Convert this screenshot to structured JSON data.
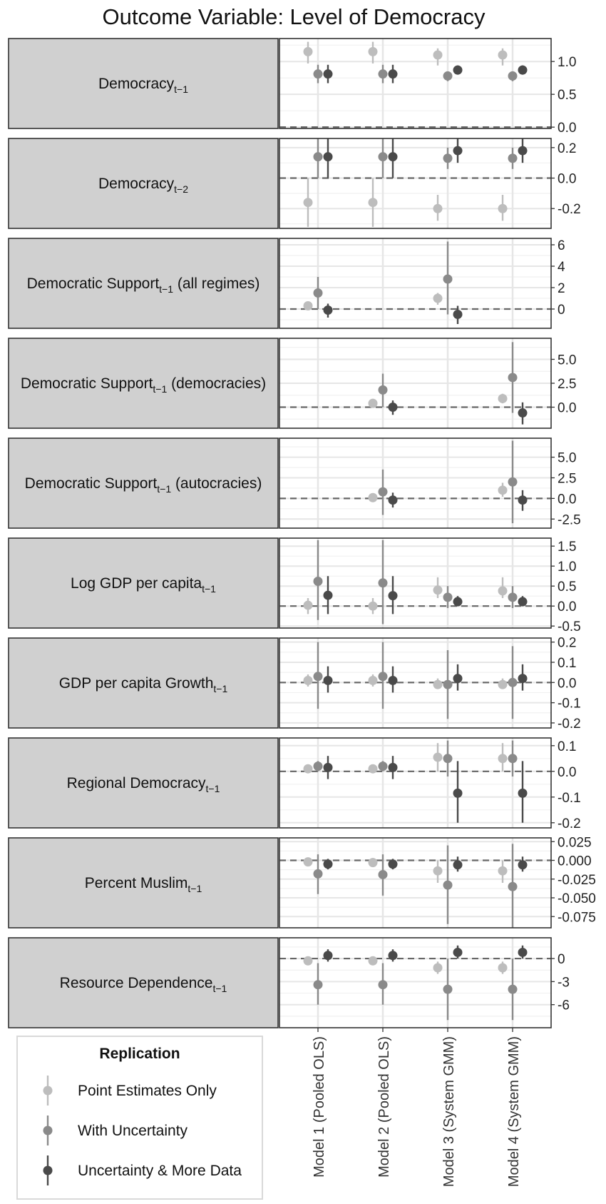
{
  "title": "Outcome Variable: Level of Democracy",
  "legend": {
    "title": "Replication",
    "position": "bottom-left",
    "entries": [
      {
        "label": "Point Estimates Only",
        "color": "#bdbdbd"
      },
      {
        "label": "With Uncertainty",
        "color": "#8a8a8a"
      },
      {
        "label": "Uncertainty & More Data",
        "color": "#4a4a4a"
      }
    ]
  },
  "colors": {
    "point_estimates_only": "#bdbdbd",
    "with_uncertainty": "#8a8a8a",
    "uncertainty_more_data": "#4a4a4a",
    "strip_fill": "#d0d0d0",
    "grid": "#e6e6e6",
    "zero_line": "#666666"
  },
  "chart_data": {
    "type": "scatter",
    "style": "coefficient-plot",
    "grid": true,
    "categories": [
      "Model 1 (Pooled OLS)",
      "Model 2 (Pooled OLS)",
      "Model 3 (System GMM)",
      "Model 4 (System GMM)"
    ],
    "series_names": [
      "Point Estimates Only",
      "With Uncertainty",
      "Uncertainty & More Data"
    ],
    "panels": [
      {
        "label_main": "Democracy",
        "label_sub": "t−1",
        "label_rest": "",
        "ylim": [
          -0.02,
          1.35
        ],
        "ticks": [
          {
            "v": 1.0,
            "t": "1.0"
          },
          {
            "v": 0.5,
            "t": "0.5"
          },
          {
            "v": 0.0,
            "t": "0.0"
          }
        ],
        "minor": [
          0.25,
          0.75,
          1.25
        ],
        "points": [
          [
            {
              "y": 1.15,
              "lo": 0.97,
              "hi": 1.3
            },
            {
              "y": 0.81,
              "lo": 0.67,
              "hi": 0.95
            },
            {
              "y": 0.81,
              "lo": 0.67,
              "hi": 0.95
            }
          ],
          [
            {
              "y": 1.15,
              "lo": 0.97,
              "hi": 1.3
            },
            {
              "y": 0.81,
              "lo": 0.67,
              "hi": 0.95
            },
            {
              "y": 0.81,
              "lo": 0.67,
              "hi": 0.95
            }
          ],
          [
            {
              "y": 1.1,
              "lo": 0.94,
              "hi": 1.2
            },
            {
              "y": 0.78,
              "lo": 0.7,
              "hi": 0.85
            },
            {
              "y": 0.87,
              "lo": 0.8,
              "hi": 0.94
            }
          ],
          [
            {
              "y": 1.1,
              "lo": 0.94,
              "hi": 1.2
            },
            {
              "y": 0.78,
              "lo": 0.7,
              "hi": 0.85
            },
            {
              "y": 0.87,
              "lo": 0.8,
              "hi": 0.94
            }
          ]
        ]
      },
      {
        "label_main": "Democracy",
        "label_sub": "t−2",
        "label_rest": "",
        "ylim": [
          -0.33,
          0.26
        ],
        "ticks": [
          {
            "v": 0.2,
            "t": "0.2"
          },
          {
            "v": 0.0,
            "t": "0.0"
          },
          {
            "v": -0.2,
            "t": "-0.2"
          }
        ],
        "minor": [
          0.1,
          -0.1,
          -0.3
        ],
        "points": [
          [
            {
              "y": -0.16,
              "lo": -0.32,
              "hi": 0.0
            },
            {
              "y": 0.14,
              "lo": 0.0,
              "hi": 0.27
            },
            {
              "y": 0.14,
              "lo": 0.0,
              "hi": 0.27
            }
          ],
          [
            {
              "y": -0.16,
              "lo": -0.32,
              "hi": 0.0
            },
            {
              "y": 0.14,
              "lo": 0.0,
              "hi": 0.27
            },
            {
              "y": 0.14,
              "lo": 0.0,
              "hi": 0.27
            }
          ],
          [
            {
              "y": -0.2,
              "lo": -0.28,
              "hi": -0.11
            },
            {
              "y": 0.13,
              "lo": 0.06,
              "hi": 0.2
            },
            {
              "y": 0.18,
              "lo": 0.1,
              "hi": 0.26
            }
          ],
          [
            {
              "y": -0.2,
              "lo": -0.28,
              "hi": -0.11
            },
            {
              "y": 0.13,
              "lo": 0.06,
              "hi": 0.2
            },
            {
              "y": 0.18,
              "lo": 0.1,
              "hi": 0.26
            }
          ]
        ]
      },
      {
        "label_main": "Democratic Support",
        "label_sub": "t−1",
        "label_rest": " (all regimes)",
        "ylim": [
          -1.8,
          6.6
        ],
        "ticks": [
          {
            "v": 6,
            "t": "6"
          },
          {
            "v": 4,
            "t": "4"
          },
          {
            "v": 2,
            "t": "2"
          },
          {
            "v": 0,
            "t": "0"
          }
        ],
        "minor": [
          5,
          3,
          1,
          -1
        ],
        "points": [
          [
            {
              "y": 0.3,
              "lo": 0.1,
              "hi": 0.5
            },
            {
              "y": 1.5,
              "lo": 0.0,
              "hi": 3.0
            },
            {
              "y": -0.1,
              "lo": -0.8,
              "hi": 0.5
            }
          ],
          null,
          [
            {
              "y": 1.0,
              "lo": 0.4,
              "hi": 1.5
            },
            {
              "y": 2.8,
              "lo": -0.5,
              "hi": 6.3
            },
            {
              "y": -0.5,
              "lo": -1.4,
              "hi": 0.3
            }
          ],
          null
        ]
      },
      {
        "label_main": "Democratic Support",
        "label_sub": "t−1",
        "label_rest": " (democracies)",
        "ylim": [
          -2.2,
          7.2
        ],
        "ticks": [
          {
            "v": 5,
            "t": "5.0"
          },
          {
            "v": 2.5,
            "t": "2.5"
          },
          {
            "v": 0,
            "t": "0.0"
          }
        ],
        "minor": [
          6.25,
          3.75,
          1.25,
          -1.25
        ],
        "points": [
          null,
          [
            {
              "y": 0.4,
              "lo": 0.1,
              "hi": 0.7
            },
            {
              "y": 1.8,
              "lo": 0.0,
              "hi": 3.5
            },
            {
              "y": 0.0,
              "lo": -0.8,
              "hi": 0.7
            }
          ],
          null,
          [
            {
              "y": 0.9,
              "lo": 0.4,
              "hi": 1.4
            },
            {
              "y": 3.1,
              "lo": -0.6,
              "hi": 6.8
            },
            {
              "y": -0.6,
              "lo": -1.8,
              "hi": 0.5
            }
          ]
        ]
      },
      {
        "label_main": "Democratic Support",
        "label_sub": "t−1",
        "label_rest": " (autocracies)",
        "ylim": [
          -3.6,
          7.3
        ],
        "ticks": [
          {
            "v": 5,
            "t": "5.0"
          },
          {
            "v": 2.5,
            "t": "2.5"
          },
          {
            "v": 0,
            "t": "0.0"
          },
          {
            "v": -2.5,
            "t": "-2.5"
          }
        ],
        "minor": [
          6.25,
          3.75,
          1.25,
          -1.25
        ],
        "points": [
          null,
          [
            {
              "y": 0.1,
              "lo": -0.3,
              "hi": 0.5
            },
            {
              "y": 0.8,
              "lo": -2.0,
              "hi": 3.5
            },
            {
              "y": -0.2,
              "lo": -1.1,
              "hi": 0.7
            }
          ],
          null,
          [
            {
              "y": 1.0,
              "lo": 0.2,
              "hi": 1.9
            },
            {
              "y": 2.0,
              "lo": -3.0,
              "hi": 7.0
            },
            {
              "y": -0.2,
              "lo": -1.5,
              "hi": 1.0
            }
          ]
        ]
      },
      {
        "label_main": "Log GDP per capita",
        "label_sub": "t−1",
        "label_rest": "",
        "ylim": [
          -0.55,
          1.7
        ],
        "ticks": [
          {
            "v": 1.5,
            "t": "1.5"
          },
          {
            "v": 1.0,
            "t": "1.0"
          },
          {
            "v": 0.5,
            "t": "0.5"
          },
          {
            "v": 0.0,
            "t": "0.0"
          },
          {
            "v": -0.5,
            "t": "-0.5"
          }
        ],
        "minor": [
          1.25,
          0.75,
          0.25,
          -0.25
        ],
        "points": [
          [
            {
              "y": 0.02,
              "lo": -0.2,
              "hi": 0.2
            },
            {
              "y": 0.62,
              "lo": -0.35,
              "hi": 1.65
            },
            {
              "y": 0.27,
              "lo": -0.2,
              "hi": 0.75
            }
          ],
          [
            {
              "y": 0.0,
              "lo": -0.2,
              "hi": 0.2
            },
            {
              "y": 0.58,
              "lo": -0.45,
              "hi": 1.65
            },
            {
              "y": 0.26,
              "lo": -0.2,
              "hi": 0.75
            }
          ],
          [
            {
              "y": 0.4,
              "lo": 0.2,
              "hi": 0.72
            },
            {
              "y": 0.22,
              "lo": -0.05,
              "hi": 0.5
            },
            {
              "y": 0.11,
              "lo": 0.0,
              "hi": 0.25
            }
          ],
          [
            {
              "y": 0.38,
              "lo": 0.2,
              "hi": 0.72
            },
            {
              "y": 0.22,
              "lo": -0.05,
              "hi": 0.5
            },
            {
              "y": 0.11,
              "lo": 0.0,
              "hi": 0.25
            }
          ]
        ]
      },
      {
        "label_main": "GDP per capita Growth",
        "label_sub": "t−1",
        "label_rest": "",
        "ylim": [
          -0.225,
          0.22
        ],
        "ticks": [
          {
            "v": 0.2,
            "t": "0.2"
          },
          {
            "v": 0.1,
            "t": "0.1"
          },
          {
            "v": 0.0,
            "t": "0.0"
          },
          {
            "v": -0.1,
            "t": "-0.1"
          },
          {
            "v": -0.2,
            "t": "-0.2"
          }
        ],
        "minor": [
          0.15,
          0.05,
          -0.05,
          -0.15
        ],
        "points": [
          [
            {
              "y": 0.01,
              "lo": -0.02,
              "hi": 0.04
            },
            {
              "y": 0.03,
              "lo": -0.13,
              "hi": 0.2
            },
            {
              "y": 0.01,
              "lo": -0.05,
              "hi": 0.08
            }
          ],
          [
            {
              "y": 0.01,
              "lo": -0.02,
              "hi": 0.04
            },
            {
              "y": 0.03,
              "lo": -0.13,
              "hi": 0.2
            },
            {
              "y": 0.01,
              "lo": -0.05,
              "hi": 0.08
            }
          ],
          [
            {
              "y": -0.01,
              "lo": -0.03,
              "hi": 0.02
            },
            {
              "y": -0.01,
              "lo": -0.18,
              "hi": 0.16
            },
            {
              "y": 0.02,
              "lo": -0.04,
              "hi": 0.09
            }
          ],
          [
            {
              "y": -0.01,
              "lo": -0.03,
              "hi": 0.02
            },
            {
              "y": 0.0,
              "lo": -0.18,
              "hi": 0.18
            },
            {
              "y": 0.02,
              "lo": -0.04,
              "hi": 0.09
            }
          ]
        ]
      },
      {
        "label_main": "Regional Democracy",
        "label_sub": "t−1",
        "label_rest": "",
        "ylim": [
          -0.22,
          0.13
        ],
        "ticks": [
          {
            "v": 0.1,
            "t": "0.1"
          },
          {
            "v": 0.0,
            "t": "0.0"
          },
          {
            "v": -0.1,
            "t": "-0.1"
          },
          {
            "v": -0.2,
            "t": "-0.2"
          }
        ],
        "minor": [
          0.05,
          -0.05,
          -0.15
        ],
        "points": [
          [
            {
              "y": 0.01,
              "lo": 0.0,
              "hi": 0.02
            },
            {
              "y": 0.02,
              "lo": 0.0,
              "hi": 0.04
            },
            {
              "y": 0.015,
              "lo": -0.03,
              "hi": 0.06
            }
          ],
          [
            {
              "y": 0.01,
              "lo": 0.0,
              "hi": 0.02
            },
            {
              "y": 0.02,
              "lo": 0.0,
              "hi": 0.04
            },
            {
              "y": 0.015,
              "lo": -0.03,
              "hi": 0.06
            }
          ],
          [
            {
              "y": 0.055,
              "lo": 0.0,
              "hi": 0.11
            },
            {
              "y": 0.05,
              "lo": -0.02,
              "hi": 0.12
            },
            {
              "y": -0.085,
              "lo": -0.2,
              "hi": 0.04
            }
          ],
          [
            {
              "y": 0.05,
              "lo": 0.0,
              "hi": 0.11
            },
            {
              "y": 0.05,
              "lo": -0.02,
              "hi": 0.12
            },
            {
              "y": -0.085,
              "lo": -0.2,
              "hi": 0.04
            }
          ]
        ]
      },
      {
        "label_main": "Percent Muslim",
        "label_sub": "t−1",
        "label_rest": "",
        "ylim": [
          -0.09,
          0.03
        ],
        "ticks": [
          {
            "v": 0.025,
            "t": "0.025"
          },
          {
            "v": 0.0,
            "t": "0.000"
          },
          {
            "v": -0.025,
            "t": "-0.025"
          },
          {
            "v": -0.05,
            "t": "-0.050"
          },
          {
            "v": -0.075,
            "t": "-0.075"
          }
        ],
        "minor": [
          0.0125,
          -0.0125,
          -0.0375,
          -0.0625
        ],
        "points": [
          [
            {
              "y": -0.002,
              "lo": -0.005,
              "hi": 0.001
            },
            {
              "y": -0.018,
              "lo": -0.045,
              "hi": 0.008
            },
            {
              "y": -0.005,
              "lo": -0.012,
              "hi": 0.002
            }
          ],
          [
            {
              "y": -0.003,
              "lo": -0.006,
              "hi": 0.001
            },
            {
              "y": -0.019,
              "lo": -0.047,
              "hi": 0.008
            },
            {
              "y": -0.005,
              "lo": -0.012,
              "hi": 0.002
            }
          ],
          [
            {
              "y": -0.014,
              "lo": -0.03,
              "hi": 0.0
            },
            {
              "y": -0.033,
              "lo": -0.085,
              "hi": 0.02
            },
            {
              "y": -0.006,
              "lo": -0.015,
              "hi": 0.005
            }
          ],
          [
            {
              "y": -0.014,
              "lo": -0.03,
              "hi": 0.0
            },
            {
              "y": -0.035,
              "lo": -0.095,
              "hi": 0.022
            },
            {
              "y": -0.006,
              "lo": -0.015,
              "hi": 0.005
            }
          ]
        ]
      },
      {
        "label_main": "Resource Dependence",
        "label_sub": "t−1",
        "label_rest": "",
        "ylim": [
          -9,
          2.7
        ],
        "ticks": [
          {
            "v": 0,
            "t": "0"
          },
          {
            "v": -3,
            "t": "-3"
          },
          {
            "v": -6,
            "t": "-6"
          }
        ],
        "minor": [
          1.5,
          -1.5,
          -4.5,
          -7.5
        ],
        "points": [
          [
            {
              "y": -0.3,
              "lo": -0.6,
              "hi": 0.0
            },
            {
              "y": -3.4,
              "lo": -6.0,
              "hi": -0.6
            },
            {
              "y": 0.4,
              "lo": -0.4,
              "hi": 1.2
            }
          ],
          [
            {
              "y": -0.3,
              "lo": -0.6,
              "hi": 0.0
            },
            {
              "y": -3.4,
              "lo": -6.0,
              "hi": -0.6
            },
            {
              "y": 0.4,
              "lo": -0.4,
              "hi": 1.2
            }
          ],
          [
            {
              "y": -1.2,
              "lo": -2.0,
              "hi": -0.4
            },
            {
              "y": -4.0,
              "lo": -8.0,
              "hi": 0.0
            },
            {
              "y": 0.8,
              "lo": 0.0,
              "hi": 1.7
            }
          ],
          [
            {
              "y": -1.2,
              "lo": -2.0,
              "hi": -0.4
            },
            {
              "y": -4.0,
              "lo": -8.0,
              "hi": 0.0
            },
            {
              "y": 0.8,
              "lo": 0.0,
              "hi": 1.7
            }
          ]
        ]
      }
    ]
  }
}
